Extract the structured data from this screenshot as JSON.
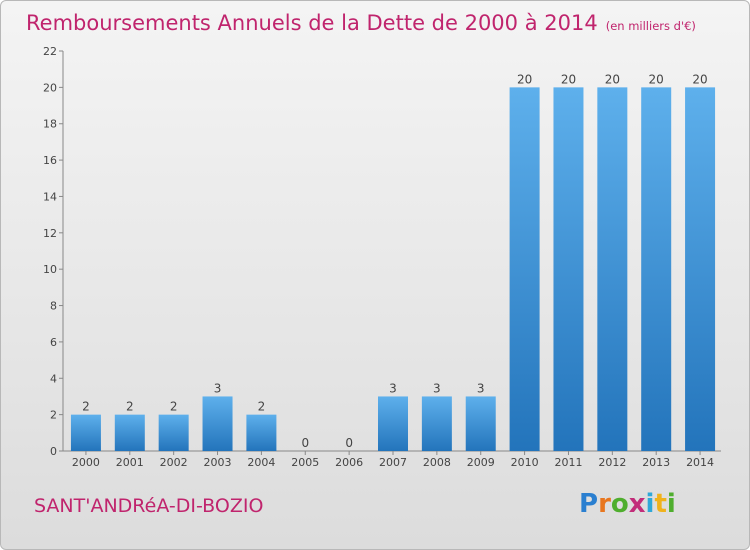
{
  "title": "Remboursements Annuels de la Dette de 2000 à 2014",
  "subtitle": "(en milliers d'€)",
  "commune": "SANT'ANDRéA-DI-BOZIO",
  "brand": {
    "letters": [
      "P",
      "r",
      "o",
      "x",
      "i",
      "t",
      "i"
    ],
    "colors": [
      "#2a7fd0",
      "#e8761e",
      "#4fae2e",
      "#c22d7a",
      "#2fa8d8",
      "#f0b21c",
      "#4fae2e"
    ]
  },
  "colors": {
    "bar_light": "#5eb0ec",
    "bar_dark": "#2374bb",
    "title": "#c0246d"
  },
  "chart_data": {
    "type": "bar",
    "categories": [
      "2000",
      "2001",
      "2002",
      "2003",
      "2004",
      "2005",
      "2006",
      "2007",
      "2008",
      "2009",
      "2010",
      "2011",
      "2012",
      "2013",
      "2014"
    ],
    "values": [
      2,
      2,
      2,
      3,
      2,
      0,
      0,
      3,
      3,
      3,
      20,
      20,
      20,
      20,
      20
    ],
    "ylim": [
      0,
      22
    ],
    "yticks": [
      0,
      2,
      4,
      6,
      8,
      10,
      12,
      14,
      16,
      18,
      20,
      22
    ],
    "grid": false,
    "legend": "none"
  }
}
